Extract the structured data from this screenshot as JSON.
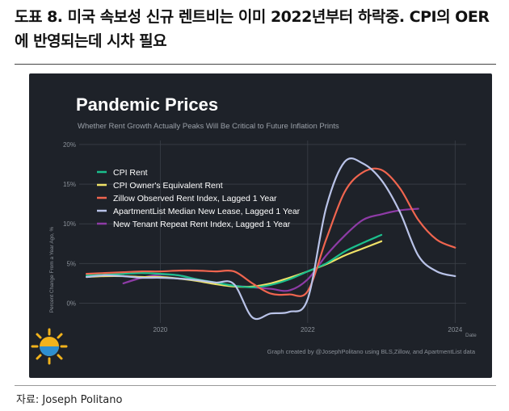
{
  "document": {
    "title": "도표 8. 미국 속보성 신규 렌트비는 이미 2022년부터 하락중. CPI의 OER에 반영되는데 시차 필요",
    "source": "자료: Joseph Politano"
  },
  "colors": {
    "background": "#1e2229",
    "cpi_rent": "#1bbf8c",
    "cpi_oer": "#f0e268",
    "zillow": "#f0654f",
    "apartmentlist": "#b9c3e8",
    "new_tenant": "#8e3ba6"
  },
  "chart_data": {
    "type": "line",
    "title": "Pandemic Prices",
    "subtitle": "Whether Rent Growth Actually Peaks Will Be Critical to Future Inflation Prints",
    "ylabel": "Percent Change From a Year Ago, %",
    "xlabel": "Date",
    "credit": "Graph created by @JosephPolitano using BLS,Zillow, and ApartmentList data",
    "xlim": [
      2018.9,
      2024.15
    ],
    "ylim": [
      -2.5,
      20.5
    ],
    "x_ticks": [
      2020,
      2022,
      2024
    ],
    "x_tick_labels": [
      "2020",
      "2022",
      "2024"
    ],
    "y_ticks": [
      0,
      5,
      10,
      15,
      20
    ],
    "y_tick_labels": [
      "0%",
      "5%",
      "10%",
      "15%",
      "20%"
    ],
    "grid": true,
    "legend_position": "top-left",
    "series": [
      {
        "name": "CPI Rent",
        "color_key": "cpi_rent",
        "x": [
          2019.0,
          2019.25,
          2019.5,
          2019.75,
          2020.0,
          2020.25,
          2020.5,
          2020.75,
          2021.0,
          2021.25,
          2021.5,
          2021.75,
          2022.0,
          2022.25,
          2022.5,
          2022.75,
          2023.0
        ],
        "y": [
          3.5,
          3.6,
          3.7,
          3.8,
          3.7,
          3.5,
          3.0,
          2.6,
          2.2,
          2.0,
          2.3,
          3.0,
          4.0,
          5.0,
          6.5,
          7.6,
          8.6
        ]
      },
      {
        "name": "CPI Owner's Equivalent Rent",
        "color_key": "cpi_oer",
        "x": [
          2019.0,
          2019.25,
          2019.5,
          2019.75,
          2020.0,
          2020.25,
          2020.5,
          2020.75,
          2021.0,
          2021.25,
          2021.5,
          2021.75,
          2022.0,
          2022.25,
          2022.5,
          2022.75,
          2023.0
        ],
        "y": [
          3.3,
          3.4,
          3.4,
          3.3,
          3.3,
          3.1,
          2.8,
          2.4,
          2.1,
          2.1,
          2.5,
          3.2,
          4.0,
          4.9,
          6.0,
          6.9,
          7.8
        ]
      },
      {
        "name": "Zillow Observed Rent Index, Lagged 1 Year",
        "color_key": "zillow",
        "x": [
          2019.0,
          2019.25,
          2019.5,
          2019.75,
          2020.0,
          2020.25,
          2020.5,
          2020.75,
          2021.0,
          2021.25,
          2021.5,
          2021.75,
          2022.0,
          2022.25,
          2022.5,
          2022.75,
          2023.0,
          2023.25,
          2023.5,
          2023.75,
          2024.0
        ],
        "y": [
          3.7,
          3.8,
          3.9,
          4.0,
          4.0,
          4.1,
          4.1,
          4.0,
          4.0,
          2.5,
          1.2,
          1.1,
          1.5,
          8.0,
          14.0,
          16.5,
          16.8,
          14.5,
          10.5,
          8.0,
          7.0
        ]
      },
      {
        "name": "ApartmentList Median New Lease, Lagged 1 Year",
        "color_key": "apartmentlist",
        "x": [
          2019.0,
          2019.25,
          2019.5,
          2019.75,
          2020.0,
          2020.25,
          2020.5,
          2020.75,
          2021.0,
          2021.25,
          2021.5,
          2021.75,
          2022.0,
          2022.25,
          2022.5,
          2022.75,
          2023.0,
          2023.25,
          2023.5,
          2023.75,
          2024.0
        ],
        "y": [
          3.3,
          3.5,
          3.4,
          3.2,
          3.2,
          3.1,
          2.9,
          2.6,
          2.4,
          -1.8,
          -1.3,
          -1.1,
          0.5,
          12.0,
          17.8,
          17.6,
          15.5,
          11.5,
          6.0,
          4.0,
          3.4
        ]
      },
      {
        "name": "New Tenant Repeat Rent Index, Lagged 1 Year",
        "color_key": "new_tenant",
        "x": [
          2019.5,
          2019.75,
          2020.0,
          2020.25,
          2020.5,
          2020.75,
          2021.0,
          2021.25,
          2021.5,
          2021.75,
          2022.0,
          2022.25,
          2022.5,
          2022.75,
          2023.0,
          2023.25,
          2023.5
        ],
        "y": [
          2.5,
          3.2,
          3.6,
          3.5,
          3.0,
          2.5,
          2.2,
          2.0,
          1.8,
          1.6,
          3.0,
          6.0,
          8.5,
          10.5,
          11.2,
          11.7,
          11.9
        ]
      }
    ]
  }
}
